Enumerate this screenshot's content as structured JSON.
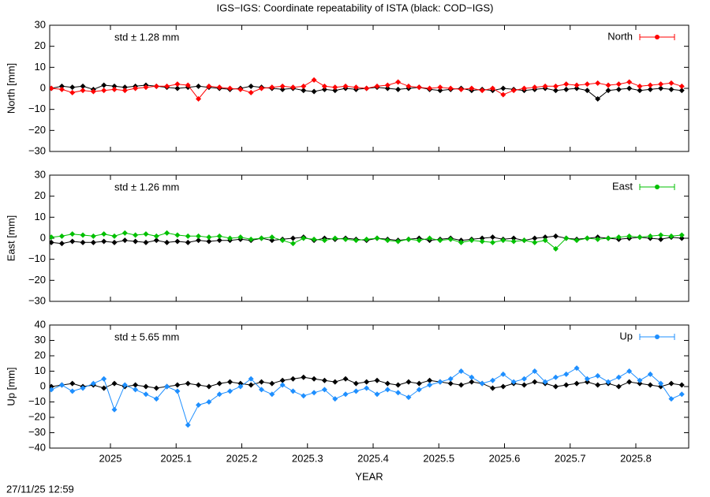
{
  "title": "IGS−IGS: Coordinate repeatability of ISTA (black: COD−IGS)",
  "timestamp": "27/11/25 12:59",
  "chart_data": [
    {
      "type": "line",
      "ylabel": "North [mm]",
      "annotation": "std ± 1.28 mm",
      "xlim": [
        2024.9075,
        2025.8805
      ],
      "xticks": [
        2025,
        2025.1,
        2025.2,
        2025.3,
        2025.4,
        2025.5,
        2025.6,
        2025.7,
        2025.8
      ],
      "ylim": [
        -30,
        30
      ],
      "yticks": [
        {
          "value": -30,
          "label": "−30"
        },
        {
          "value": -20,
          "label": "−20"
        },
        {
          "value": -10,
          "label": "−10"
        },
        0,
        10,
        20,
        30
      ],
      "x": [
        2024.91,
        2024.926,
        2024.942,
        2024.958,
        2024.974,
        2024.99,
        2025.006,
        2025.022,
        2025.038,
        2025.054,
        2025.07,
        2025.086,
        2025.102,
        2025.118,
        2025.134,
        2025.15,
        2025.166,
        2025.182,
        2025.198,
        2025.214,
        2025.23,
        2025.246,
        2025.262,
        2025.278,
        2025.294,
        2025.31,
        2025.326,
        2025.342,
        2025.358,
        2025.374,
        2025.39,
        2025.406,
        2025.422,
        2025.438,
        2025.454,
        2025.47,
        2025.486,
        2025.502,
        2025.518,
        2025.534,
        2025.55,
        2025.566,
        2025.582,
        2025.598,
        2025.614,
        2025.63,
        2025.646,
        2025.662,
        2025.678,
        2025.694,
        2025.71,
        2025.726,
        2025.742,
        2025.758,
        2025.774,
        2025.79,
        2025.806,
        2025.822,
        2025.838,
        2025.854,
        2025.87
      ],
      "series": [
        {
          "color": "#000000",
          "values": [
            0,
            1,
            0.5,
            1,
            -0.5,
            1.5,
            1,
            0.5,
            1,
            1.5,
            1,
            0.5,
            0,
            0.5,
            1,
            0.5,
            0,
            -0.5,
            0,
            1,
            0.5,
            0,
            -0.5,
            0,
            -1,
            -1.5,
            -0.5,
            -1,
            0,
            -0.5,
            0,
            0.5,
            0,
            -0.5,
            0,
            0.5,
            -0.5,
            -1,
            -0.5,
            0,
            -1,
            -0.5,
            -1,
            0,
            -0.5,
            -1,
            -0.5,
            0,
            -1,
            -0.5,
            0,
            -1,
            -5,
            -1,
            -0.5,
            0,
            -1,
            -0.5,
            0,
            -0.5,
            -1
          ]
        },
        {
          "name": "North",
          "color": "#ff0000",
          "values": [
            0,
            -0.5,
            -2,
            -1,
            -1.5,
            -1,
            -0.5,
            -1,
            0,
            0.5,
            1,
            1,
            2,
            1.5,
            -5,
            1,
            0.5,
            0,
            -0.5,
            -2,
            0,
            0.5,
            1,
            0.5,
            1,
            4,
            1,
            0.5,
            1,
            0.5,
            0,
            1,
            1.5,
            3,
            1,
            0.5,
            0,
            0.5,
            0,
            -0.5,
            0,
            -1,
            0,
            -3,
            -1,
            0,
            0.5,
            1,
            1,
            2,
            1.5,
            2,
            2.5,
            1.5,
            2,
            3,
            1,
            1.5,
            2,
            2.5,
            1
          ]
        }
      ]
    },
    {
      "type": "line",
      "ylabel": "East [mm]",
      "annotation": "std ± 1.26 mm",
      "xlim": [
        2024.9075,
        2025.8805
      ],
      "xticks": [
        2025,
        2025.1,
        2025.2,
        2025.3,
        2025.4,
        2025.5,
        2025.6,
        2025.7,
        2025.8
      ],
      "ylim": [
        -30,
        30
      ],
      "yticks": [
        {
          "value": -30,
          "label": "−30"
        },
        {
          "value": -20,
          "label": "−20"
        },
        {
          "value": -10,
          "label": "−10"
        },
        0,
        10,
        20,
        30
      ],
      "x": [
        2024.91,
        2024.926,
        2024.942,
        2024.958,
        2024.974,
        2024.99,
        2025.006,
        2025.022,
        2025.038,
        2025.054,
        2025.07,
        2025.086,
        2025.102,
        2025.118,
        2025.134,
        2025.15,
        2025.166,
        2025.182,
        2025.198,
        2025.214,
        2025.23,
        2025.246,
        2025.262,
        2025.278,
        2025.294,
        2025.31,
        2025.326,
        2025.342,
        2025.358,
        2025.374,
        2025.39,
        2025.406,
        2025.422,
        2025.438,
        2025.454,
        2025.47,
        2025.486,
        2025.502,
        2025.518,
        2025.534,
        2025.55,
        2025.566,
        2025.582,
        2025.598,
        2025.614,
        2025.63,
        2025.646,
        2025.662,
        2025.678,
        2025.694,
        2025.71,
        2025.726,
        2025.742,
        2025.758,
        2025.774,
        2025.79,
        2025.806,
        2025.822,
        2025.838,
        2025.854,
        2025.87
      ],
      "series": [
        {
          "color": "#000000",
          "values": [
            -2,
            -2.5,
            -1.5,
            -2,
            -2,
            -1.5,
            -2,
            -1,
            -1.5,
            -2,
            -1,
            -2,
            -1.5,
            -2,
            -1,
            -1.5,
            -1,
            -1,
            -0.5,
            -1,
            0,
            -1,
            -0.5,
            0,
            0.5,
            -1,
            0,
            -0.5,
            0,
            -0.5,
            -1,
            0,
            -0.5,
            -1,
            -0.5,
            0,
            -1,
            -0.5,
            0,
            -1,
            -0.5,
            0,
            0.5,
            -0.5,
            0,
            -1,
            0,
            0.5,
            1,
            0,
            -0.5,
            0,
            0.5,
            0,
            -0.5,
            0,
            0.5,
            0,
            -0.5,
            0.5,
            0
          ]
        },
        {
          "name": "East",
          "color": "#00c000",
          "values": [
            0.5,
            1,
            2,
            1.5,
            1,
            2,
            1,
            2.5,
            1.5,
            2,
            1,
            2.5,
            1.5,
            1,
            1,
            0.5,
            1,
            0,
            0.5,
            -0.5,
            0,
            0.5,
            -1,
            -2.5,
            0,
            -0.5,
            -1,
            0,
            -0.5,
            -1,
            -0.5,
            0,
            -1,
            -1.5,
            -0.5,
            -1,
            0,
            -1,
            -0.5,
            -2,
            -1,
            -1.5,
            -2,
            -1,
            -1.5,
            -1,
            -2,
            -1,
            -5,
            0,
            -1,
            0,
            -0.5,
            0,
            0.5,
            1,
            0.5,
            1,
            1.5,
            1,
            1.5
          ]
        }
      ]
    },
    {
      "type": "line",
      "ylabel": "Up [mm]",
      "annotation": "std ± 5.65 mm",
      "xlabel": "YEAR",
      "xlim": [
        2024.9075,
        2025.8805
      ],
      "xticks": [
        2025,
        2025.1,
        2025.2,
        2025.3,
        2025.4,
        2025.5,
        2025.6,
        2025.7,
        2025.8
      ],
      "ylim": [
        -40,
        40
      ],
      "yticks": [
        {
          "value": -40,
          "label": "−40"
        },
        {
          "value": -30,
          "label": "−30"
        },
        {
          "value": -20,
          "label": "−20"
        },
        {
          "value": -10,
          "label": "−10"
        },
        0,
        10,
        20,
        30,
        40
      ],
      "x": [
        2024.91,
        2024.926,
        2024.942,
        2024.958,
        2024.974,
        2024.99,
        2025.006,
        2025.022,
        2025.038,
        2025.054,
        2025.07,
        2025.086,
        2025.102,
        2025.118,
        2025.134,
        2025.15,
        2025.166,
        2025.182,
        2025.198,
        2025.214,
        2025.23,
        2025.246,
        2025.262,
        2025.278,
        2025.294,
        2025.31,
        2025.326,
        2025.342,
        2025.358,
        2025.374,
        2025.39,
        2025.406,
        2025.422,
        2025.438,
        2025.454,
        2025.47,
        2025.486,
        2025.502,
        2025.518,
        2025.534,
        2025.55,
        2025.566,
        2025.582,
        2025.598,
        2025.614,
        2025.63,
        2025.646,
        2025.662,
        2025.678,
        2025.694,
        2025.71,
        2025.726,
        2025.742,
        2025.758,
        2025.774,
        2025.79,
        2025.806,
        2025.822,
        2025.838,
        2025.854,
        2025.87
      ],
      "series": [
        {
          "color": "#000000",
          "values": [
            0,
            1,
            2,
            0,
            1,
            -1,
            2,
            0,
            1,
            0,
            -1,
            0,
            1,
            2,
            1,
            0,
            2,
            3,
            2,
            1,
            3,
            2,
            4,
            5,
            6,
            5,
            4,
            3,
            5,
            2,
            3,
            4,
            2,
            1,
            3,
            2,
            4,
            3,
            2,
            1,
            3,
            2,
            -1,
            0,
            2,
            1,
            3,
            2,
            0,
            1,
            2,
            3,
            1,
            2,
            0,
            3,
            2,
            1,
            0,
            2,
            1
          ]
        },
        {
          "name": "Up",
          "color": "#1e8fff",
          "values": [
            -2,
            1,
            -3,
            -1,
            2,
            5,
            -15,
            1,
            -2,
            -5,
            -8,
            0,
            -3,
            -25,
            -12,
            -10,
            -5,
            -3,
            0,
            5,
            -2,
            -5,
            1,
            -3,
            -6,
            -4,
            -2,
            -8,
            -5,
            -3,
            -1,
            -5,
            -2,
            -4,
            -7,
            -2,
            1,
            3,
            5,
            10,
            6,
            2,
            4,
            8,
            3,
            5,
            10,
            3,
            6,
            8,
            12,
            5,
            7,
            3,
            6,
            10,
            4,
            8,
            2,
            -8,
            -5
          ]
        }
      ]
    }
  ]
}
